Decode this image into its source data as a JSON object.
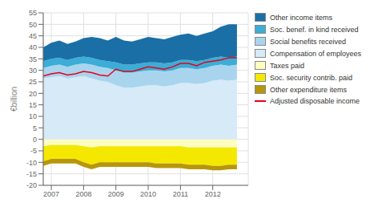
{
  "chart_data": {
    "type": "area",
    "stacked": true,
    "grid": true,
    "legend": "right",
    "y_label": "€billion",
    "xlim": [
      2006.75,
      2013.1
    ],
    "xticks": [
      2007,
      2008,
      2009,
      2010,
      2011,
      2012
    ],
    "ylim": [
      -20,
      55
    ],
    "yticks": [
      -20,
      -15,
      -10,
      -5,
      0,
      5,
      10,
      15,
      20,
      25,
      30,
      35,
      40,
      45,
      50,
      55
    ],
    "x": [
      2006.75,
      2007.0,
      2007.25,
      2007.5,
      2007.75,
      2008.0,
      2008.25,
      2008.5,
      2008.75,
      2009.0,
      2009.25,
      2009.5,
      2009.75,
      2010.0,
      2010.25,
      2010.5,
      2010.75,
      2011.0,
      2011.25,
      2011.5,
      2011.75,
      2012.0,
      2012.25,
      2012.5,
      2012.75
    ],
    "series": [
      {
        "name": "Compensation of employees",
        "type": "area",
        "color": "#D6EAF8",
        "values": [
          26.5,
          27.0,
          27.5,
          26.5,
          27.0,
          27.5,
          26.5,
          25.5,
          25.0,
          23.5,
          22.5,
          22.5,
          23.0,
          23.5,
          23.5,
          23.0,
          23.5,
          24.5,
          24.5,
          24.0,
          24.5,
          25.5,
          26.0,
          25.5,
          26.0
        ]
      },
      {
        "name": "Social benefits received",
        "type": "area",
        "color": "#A9D4EE",
        "values": [
          4.5,
          5.0,
          5.0,
          5.0,
          5.5,
          5.5,
          6.0,
          6.0,
          6.0,
          6.5,
          6.5,
          6.5,
          6.5,
          6.5,
          6.5,
          6.5,
          6.5,
          6.5,
          6.5,
          6.5,
          6.5,
          6.5,
          6.5,
          6.5,
          6.5
        ]
      },
      {
        "name": "Soc. benef. in kind received",
        "type": "area",
        "color": "#3BADD6",
        "values": [
          3.0,
          3.0,
          3.0,
          3.0,
          3.0,
          3.0,
          3.0,
          3.0,
          3.0,
          3.5,
          3.5,
          3.5,
          3.5,
          3.5,
          3.5,
          3.5,
          3.5,
          3.5,
          3.5,
          3.5,
          3.5,
          3.5,
          3.5,
          3.5,
          3.5
        ]
      },
      {
        "name": "Other income items",
        "type": "area",
        "color": "#1A6FA6",
        "values": [
          6.0,
          7.0,
          7.5,
          7.0,
          7.0,
          8.0,
          9.0,
          9.5,
          9.0,
          11.0,
          10.5,
          10.0,
          10.5,
          11.0,
          10.5,
          10.5,
          11.0,
          11.0,
          11.5,
          11.0,
          11.5,
          11.5,
          13.0,
          14.5,
          14.0
        ]
      },
      {
        "name": "Taxes paid",
        "type": "area",
        "color": "#FDFDC0",
        "values": [
          -3.0,
          -2.5,
          -2.5,
          -2.5,
          -2.5,
          -3.0,
          -3.5,
          -3.0,
          -3.0,
          -3.0,
          -3.0,
          -3.0,
          -3.0,
          -3.0,
          -3.0,
          -3.0,
          -3.0,
          -3.0,
          -3.5,
          -3.5,
          -3.5,
          -3.5,
          -3.5,
          -3.5,
          -3.5
        ]
      },
      {
        "name": "Soc. security contrib. paid",
        "type": "area",
        "color": "#F5E800",
        "values": [
          -6.5,
          -6.0,
          -6.0,
          -6.0,
          -6.0,
          -7.0,
          -7.5,
          -7.0,
          -7.0,
          -7.0,
          -7.0,
          -7.0,
          -7.0,
          -7.0,
          -7.5,
          -7.5,
          -7.5,
          -7.5,
          -7.5,
          -7.5,
          -7.5,
          -8.0,
          -8.0,
          -7.5,
          -7.5
        ]
      },
      {
        "name": "Other expenditure items",
        "type": "area",
        "color": "#B8960C",
        "values": [
          -2.0,
          -2.0,
          -2.0,
          -2.0,
          -2.0,
          -2.0,
          -2.0,
          -2.0,
          -2.0,
          -2.0,
          -2.0,
          -2.0,
          -2.0,
          -2.0,
          -2.0,
          -2.0,
          -2.0,
          -2.0,
          -2.0,
          -2.0,
          -2.0,
          -2.0,
          -2.0,
          -2.0,
          -2.0
        ]
      },
      {
        "name": "Adjusted disposable income",
        "type": "line",
        "color": "#E8001A",
        "values": [
          27.5,
          28.5,
          29.0,
          28.0,
          28.5,
          29.5,
          29.0,
          28.0,
          27.5,
          30.5,
          29.5,
          29.5,
          30.5,
          31.5,
          31.0,
          30.5,
          31.5,
          33.0,
          33.0,
          32.0,
          33.5,
          34.0,
          34.5,
          35.5,
          35.5
        ]
      }
    ]
  }
}
